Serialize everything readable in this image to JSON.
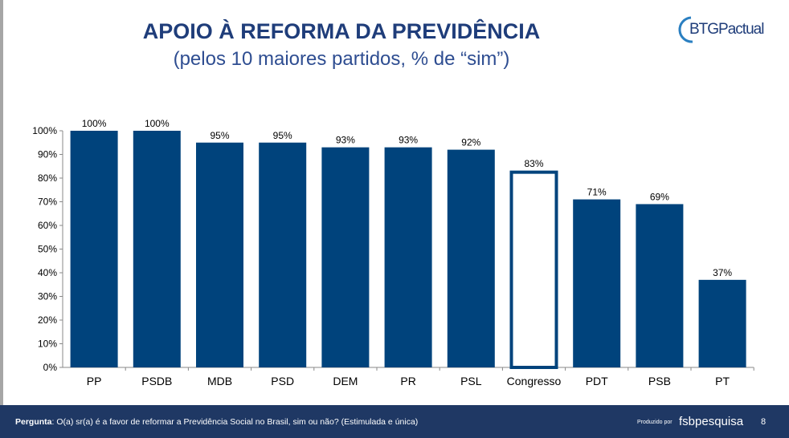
{
  "header": {
    "title": "APOIO À REFORMA DA PREVIDÊNCIA",
    "subtitle": "(pelos 10 maiores partidos, % de “sim”)",
    "logo": "BTGPactual"
  },
  "chart_data": {
    "type": "bar",
    "categories": [
      "PP",
      "PSDB",
      "MDB",
      "PSD",
      "DEM",
      "PR",
      "PSL",
      "Congresso",
      "PDT",
      "PSB",
      "PT"
    ],
    "values": [
      100,
      100,
      95,
      95,
      93,
      93,
      92,
      83,
      71,
      69,
      37
    ],
    "data_labels": [
      "100%",
      "100%",
      "95%",
      "95%",
      "93%",
      "93%",
      "92%",
      "83%",
      "71%",
      "69%",
      "37%"
    ],
    "ylim": [
      0,
      100
    ],
    "yticks": [
      "0%",
      "10%",
      "20%",
      "30%",
      "40%",
      "50%",
      "60%",
      "70%",
      "80%",
      "90%",
      "100%"
    ],
    "highlight": "Congresso",
    "colors": {
      "bar": "#00437c",
      "highlight_fill": "#ffffff"
    },
    "grid": false
  },
  "footer": {
    "question_label": "Pergunta",
    "question": ": O(a) sr(a) é a favor de reformar a Previdência Social no Brasil, sim ou não? (Estimulada e única)",
    "produced_by": "Produzido por",
    "producer": "fsbpesquisa",
    "page": "8"
  }
}
